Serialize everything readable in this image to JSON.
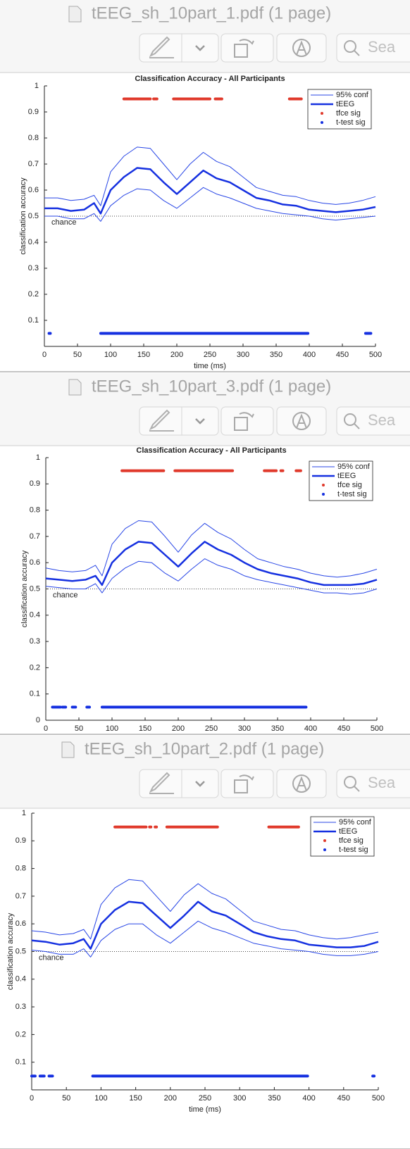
{
  "windows": [
    {
      "title": "tEEG_sh_10part_1.pdf (1 page)",
      "search_placeholder": "Sea",
      "chart_data": {
        "type": "line",
        "title": "Classification Accuracy - All Participants",
        "xlabel": "time (ms)",
        "ylabel": "classification accuracy",
        "x": [
          0,
          20,
          40,
          60,
          75,
          85,
          100,
          120,
          140,
          160,
          180,
          200,
          220,
          240,
          260,
          280,
          300,
          320,
          340,
          360,
          380,
          400,
          420,
          440,
          460,
          480,
          500
        ],
        "conf": {
          "name": "95% conf",
          "color": "#2846e6",
          "upper": [
            0.57,
            0.57,
            0.56,
            0.565,
            0.58,
            0.54,
            0.67,
            0.73,
            0.765,
            0.76,
            0.7,
            0.64,
            0.7,
            0.745,
            0.71,
            0.69,
            0.65,
            0.61,
            0.595,
            0.58,
            0.575,
            0.56,
            0.55,
            0.545,
            0.55,
            0.56,
            0.575
          ],
          "lower": [
            0.5,
            0.5,
            0.49,
            0.49,
            0.51,
            0.48,
            0.54,
            0.58,
            0.605,
            0.6,
            0.56,
            0.53,
            0.57,
            0.61,
            0.585,
            0.57,
            0.55,
            0.53,
            0.52,
            0.51,
            0.505,
            0.5,
            0.49,
            0.485,
            0.49,
            0.495,
            0.5
          ]
        },
        "series": [
          {
            "name": "tEEG",
            "color": "#1530e0",
            "values": [
              0.53,
              0.53,
              0.52,
              0.525,
              0.55,
              0.51,
              0.6,
              0.65,
              0.685,
              0.68,
              0.63,
              0.585,
              0.63,
              0.675,
              0.645,
              0.63,
              0.6,
              0.57,
              0.56,
              0.545,
              0.54,
              0.525,
              0.52,
              0.515,
              0.52,
              0.525,
              0.535
            ]
          }
        ],
        "markers": [
          {
            "name": "tfce sig",
            "color": "#e0392b",
            "y": 0.95,
            "ranges": [
              [
                120,
                160
              ],
              [
                165,
                170
              ],
              [
                195,
                250
              ],
              [
                258,
                268
              ],
              [
                370,
                388
              ]
            ]
          },
          {
            "name": "t-test sig",
            "color": "#1530e0",
            "y": 0.05,
            "ranges": [
              [
                7,
                9
              ],
              [
                85,
                398
              ],
              [
                485,
                493
              ]
            ]
          }
        ],
        "chance": {
          "label": "chance",
          "y": 0.5
        },
        "xlim": [
          0,
          500
        ],
        "xticks": [
          0,
          50,
          100,
          150,
          200,
          250,
          300,
          350,
          400,
          450,
          500
        ],
        "ylim": [
          0,
          1
        ],
        "yticks": [
          0.1,
          0.2,
          0.3,
          0.4,
          0.5,
          0.6,
          0.7,
          0.8,
          0.9,
          1
        ]
      }
    },
    {
      "title": "tEEG_sh_10part_3.pdf (1 page)",
      "search_placeholder": "Sea",
      "chart_data": {
        "type": "line",
        "title": "Classification Accuracy - All Participants",
        "ylabel": "classification accuracy",
        "x": [
          0,
          20,
          40,
          60,
          75,
          85,
          100,
          120,
          140,
          160,
          180,
          200,
          220,
          240,
          260,
          280,
          300,
          320,
          340,
          360,
          380,
          400,
          420,
          440,
          460,
          480,
          500
        ],
        "conf": {
          "name": "95% conf",
          "color": "#2846e6",
          "upper": [
            0.58,
            0.57,
            0.565,
            0.57,
            0.59,
            0.55,
            0.67,
            0.73,
            0.76,
            0.755,
            0.7,
            0.64,
            0.705,
            0.75,
            0.715,
            0.69,
            0.65,
            0.615,
            0.6,
            0.585,
            0.575,
            0.56,
            0.55,
            0.545,
            0.55,
            0.56,
            0.575
          ],
          "lower": [
            0.51,
            0.505,
            0.5,
            0.5,
            0.52,
            0.485,
            0.54,
            0.58,
            0.605,
            0.6,
            0.56,
            0.53,
            0.575,
            0.615,
            0.59,
            0.575,
            0.55,
            0.535,
            0.525,
            0.515,
            0.505,
            0.495,
            0.485,
            0.485,
            0.48,
            0.485,
            0.5
          ]
        },
        "series": [
          {
            "name": "tEEG",
            "color": "#1530e0",
            "values": [
              0.54,
              0.535,
              0.53,
              0.535,
              0.55,
              0.515,
              0.6,
              0.65,
              0.68,
              0.675,
              0.63,
              0.585,
              0.635,
              0.68,
              0.65,
              0.63,
              0.6,
              0.575,
              0.56,
              0.55,
              0.54,
              0.525,
              0.515,
              0.515,
              0.515,
              0.52,
              0.535
            ]
          }
        ],
        "markers": [
          {
            "name": "tfce sig",
            "color": "#e0392b",
            "y": 0.95,
            "ranges": [
              [
                115,
                178
              ],
              [
                195,
                282
              ],
              [
                330,
                348
              ],
              [
                355,
                358
              ],
              [
                378,
                385
              ]
            ]
          },
          {
            "name": "t-test sig",
            "color": "#1530e0",
            "y": 0.05,
            "ranges": [
              [
                10,
                22
              ],
              [
                25,
                30
              ],
              [
                40,
                45
              ],
              [
                62,
                66
              ],
              [
                85,
                393
              ]
            ]
          }
        ],
        "chance": {
          "label": "chance",
          "y": 0.5
        },
        "xlim": [
          0,
          500
        ],
        "xticks": [
          0,
          50,
          100,
          150,
          200,
          250,
          300,
          350,
          400,
          450,
          500
        ],
        "ylim": [
          0,
          1
        ],
        "yticks": [
          0,
          0.1,
          0.2,
          0.3,
          0.4,
          0.5,
          0.6,
          0.7,
          0.8,
          0.9,
          1
        ]
      }
    },
    {
      "title": "tEEG_sh_10part_2.pdf (1 page)",
      "search_placeholder": "Sea",
      "chart_data": {
        "type": "line",
        "xlabel": "time (ms)",
        "ylabel": "classification accuracy",
        "x": [
          0,
          20,
          40,
          60,
          75,
          85,
          100,
          120,
          140,
          160,
          180,
          200,
          220,
          240,
          260,
          280,
          300,
          320,
          340,
          360,
          380,
          400,
          420,
          440,
          460,
          480,
          500
        ],
        "conf": {
          "name": "95% conf",
          "color": "#2846e6",
          "upper": [
            0.575,
            0.57,
            0.56,
            0.565,
            0.58,
            0.545,
            0.67,
            0.73,
            0.76,
            0.755,
            0.7,
            0.645,
            0.705,
            0.745,
            0.71,
            0.69,
            0.65,
            0.61,
            0.595,
            0.58,
            0.575,
            0.56,
            0.55,
            0.545,
            0.55,
            0.56,
            0.57
          ],
          "lower": [
            0.505,
            0.5,
            0.49,
            0.49,
            0.51,
            0.48,
            0.54,
            0.58,
            0.6,
            0.6,
            0.56,
            0.53,
            0.57,
            0.61,
            0.585,
            0.57,
            0.55,
            0.53,
            0.52,
            0.51,
            0.505,
            0.5,
            0.49,
            0.485,
            0.485,
            0.49,
            0.5
          ]
        },
        "series": [
          {
            "name": "tEEG",
            "color": "#1530e0",
            "values": [
              0.54,
              0.535,
              0.525,
              0.53,
              0.545,
              0.51,
              0.6,
              0.65,
              0.68,
              0.675,
              0.63,
              0.585,
              0.63,
              0.68,
              0.645,
              0.63,
              0.6,
              0.57,
              0.555,
              0.545,
              0.54,
              0.525,
              0.52,
              0.515,
              0.515,
              0.52,
              0.535
            ]
          }
        ],
        "markers": [
          {
            "name": "tfce sig",
            "color": "#e0392b",
            "y": 0.95,
            "ranges": [
              [
                120,
                165
              ],
              [
                170,
                172
              ],
              [
                178,
                180
              ],
              [
                195,
                268
              ],
              [
                342,
                385
              ]
            ]
          },
          {
            "name": "t-test sig",
            "color": "#1530e0",
            "y": 0.05,
            "ranges": [
              [
                0,
                5
              ],
              [
                12,
                18
              ],
              [
                25,
                30
              ],
              [
                88,
                398
              ],
              [
                492,
                494
              ]
            ]
          }
        ],
        "chance": {
          "label": "chance",
          "y": 0.5
        },
        "xlim": [
          0,
          500
        ],
        "xticks": [
          0,
          50,
          100,
          150,
          200,
          250,
          300,
          350,
          400,
          450,
          500
        ],
        "ylim": [
          0,
          1
        ],
        "yticks": [
          0.1,
          0.2,
          0.3,
          0.4,
          0.5,
          0.6,
          0.7,
          0.8,
          0.9,
          1
        ]
      }
    }
  ]
}
